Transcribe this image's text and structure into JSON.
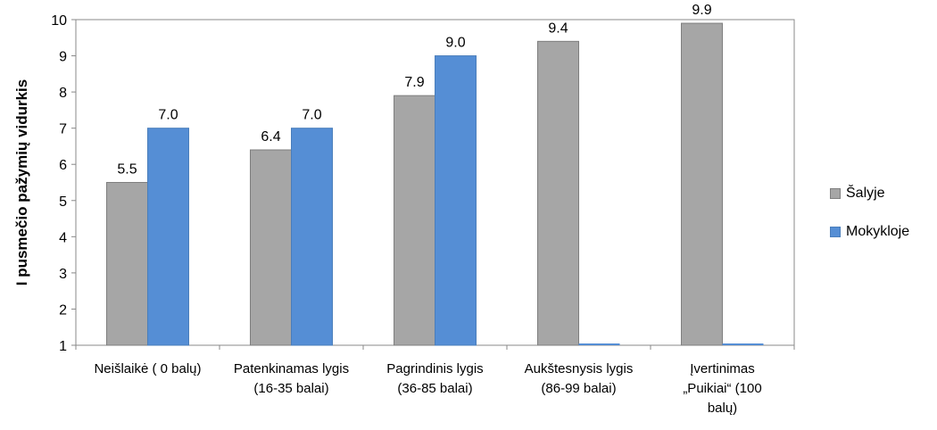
{
  "chart_data": {
    "type": "bar",
    "title": "",
    "xlabel": "",
    "ylabel": "I pusmečio pažymių vidurkis",
    "ylim": [
      1,
      10
    ],
    "yticks": [
      1,
      2,
      3,
      4,
      5,
      6,
      7,
      8,
      9,
      10
    ],
    "grid": false,
    "legend_position": "right",
    "categories": [
      [
        "Neišlaikė ( 0 balų)"
      ],
      [
        "Patenkinamas lygis",
        "(16-35 balai)"
      ],
      [
        "Pagrindinis lygis",
        "(36-85 balai)"
      ],
      [
        "Aukštesnysis lygis",
        "(86-99 balai)"
      ],
      [
        "Įvertinimas",
        "„Puikiai“ (100",
        "balų)"
      ]
    ],
    "series": [
      {
        "name": "Šalyje",
        "color": "#a6a6a6",
        "values": [
          5.5,
          6.4,
          7.9,
          9.4,
          9.9
        ],
        "labels": [
          "5.5",
          "6.4",
          "7.9",
          "9.4",
          "9.9"
        ]
      },
      {
        "name": "Mokykloje",
        "color": "#558ed5",
        "values": [
          7.0,
          7.0,
          9.0,
          null,
          null
        ],
        "labels": [
          "7.0",
          "7.0",
          "9.0",
          "",
          ""
        ]
      }
    ]
  }
}
